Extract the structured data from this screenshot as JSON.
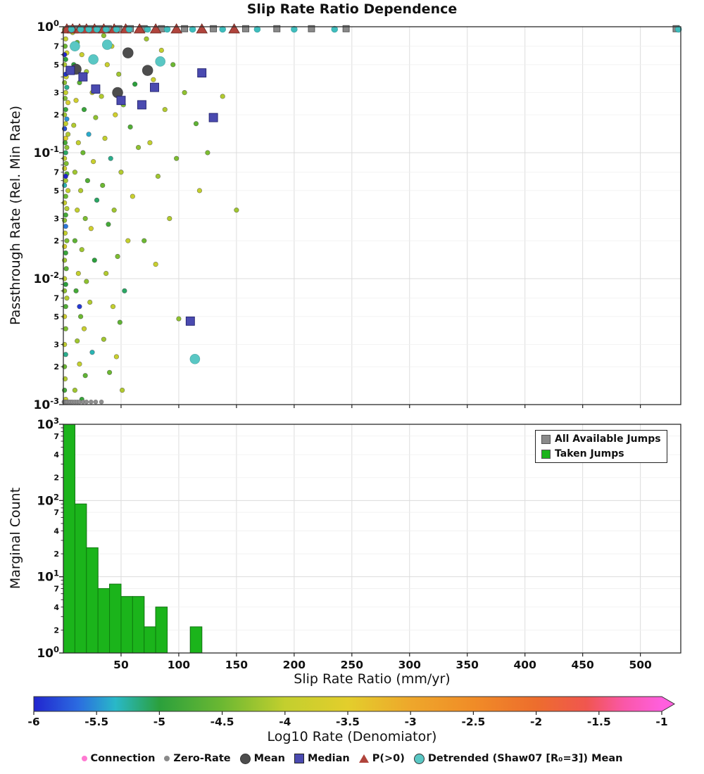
{
  "figure": {
    "title": "Slip Rate Ratio Dependence"
  },
  "x_axis": {
    "label": "Slip Rate Ratio (mm/yr)",
    "ticks": [
      50,
      100,
      150,
      200,
      250,
      300,
      350,
      400,
      450,
      500
    ],
    "xlim": [
      0,
      535
    ]
  },
  "top_panel": {
    "ylabel": "Passthrough Rate (Rel. Min Rate)"
  },
  "bottom_panel": {
    "ylabel": "Marginal Count"
  },
  "colorbar": {
    "label": "Log10 Rate (Denomiator)",
    "range": [
      -6,
      -1
    ],
    "ticks": [
      -6,
      -5.5,
      -5,
      -4.5,
      -4,
      -3.5,
      -3,
      -2.5,
      -2,
      -1.5,
      -1
    ],
    "stops": [
      [
        0,
        "#2125cf"
      ],
      [
        0.07,
        "#2b6be0"
      ],
      [
        0.13,
        "#29b8c8"
      ],
      [
        0.2,
        "#2ba03c"
      ],
      [
        0.3,
        "#6cb832"
      ],
      [
        0.4,
        "#c3cf2e"
      ],
      [
        0.5,
        "#e3ce2c"
      ],
      [
        0.6,
        "#eea72b"
      ],
      [
        0.7,
        "#f08c27"
      ],
      [
        0.8,
        "#ed6d2d"
      ],
      [
        0.88,
        "#f0564f"
      ],
      [
        0.94,
        "#fa57a8"
      ],
      [
        1,
        "#ff5fde"
      ]
    ]
  },
  "hist_legend": {
    "items": [
      {
        "label": "All Available Jumps",
        "color": "#8a8a8a"
      },
      {
        "label": "Taken Jumps",
        "color": "#1bb41b"
      }
    ]
  },
  "figure_legend": {
    "items": [
      {
        "label": "Connection",
        "marker": "dot",
        "color": "#ff7ad2"
      },
      {
        "label": "Zero-Rate",
        "marker": "dot",
        "color": "#8a8a8a"
      },
      {
        "label": "Mean",
        "marker": "circle",
        "color": "#4d4d4d"
      },
      {
        "label": "Median",
        "marker": "square",
        "color": "#4a4ab0"
      },
      {
        "label": "P(>0)",
        "marker": "triangle",
        "color": "#b0443c"
      },
      {
        "label": "Detrended (Shaw07 [R₀=3]) Mean",
        "marker": "circle",
        "color": "#59c7c4"
      }
    ]
  },
  "chart_data": [
    {
      "type": "scatter",
      "panel": "top",
      "title": "Slip Rate Ratio Dependence",
      "xlabel": "Slip Rate Ratio (mm/yr)",
      "ylabel": "Passthrough Rate (Rel. Min Rate)",
      "xlim": [
        0,
        535
      ],
      "ylim": [
        0.001,
        1
      ],
      "yscale": "log",
      "y_major_exponents": [
        0,
        -1,
        -2,
        -3
      ],
      "y_minor_digits": [
        7,
        5,
        3,
        2
      ],
      "series": [
        {
          "name": "jumps-colored-by-log10-rate",
          "marker": "circle",
          "size": 3.3,
          "color_by": "log10_rate",
          "points": [
            [
              1,
              0.95,
              -4.2
            ],
            [
              2,
              0.8,
              -4.0
            ],
            [
              1.5,
              0.7,
              -4.5
            ],
            [
              3,
              0.62,
              -3.8
            ],
            [
              2,
              0.55,
              -5.0
            ],
            [
              1,
              0.5,
              -4.1
            ],
            [
              4,
              0.45,
              -4.6
            ],
            [
              2.5,
              0.4,
              -3.9
            ],
            [
              1,
              0.36,
              -4.3
            ],
            [
              3,
              0.33,
              -5.2
            ],
            [
              2,
              0.3,
              -4.0
            ],
            [
              1.5,
              0.27,
              -4.4
            ],
            [
              4,
              0.25,
              -3.7
            ],
            [
              2,
              0.22,
              -4.9
            ],
            [
              1,
              0.2,
              -4.2
            ],
            [
              3,
              0.185,
              -5.5
            ],
            [
              2,
              0.17,
              -4.0
            ],
            [
              1,
              0.155,
              -4.6
            ],
            [
              4,
              0.14,
              -4.1
            ],
            [
              2,
              0.13,
              -3.6
            ],
            [
              1.5,
              0.12,
              -4.8
            ],
            [
              3,
              0.11,
              -4.3
            ],
            [
              2,
              0.1,
              -5.1
            ],
            [
              1,
              0.09,
              -4.0
            ],
            [
              2.5,
              0.082,
              -4.4
            ],
            [
              1,
              0.075,
              -3.8
            ],
            [
              3,
              0.068,
              -4.7
            ],
            [
              2,
              0.06,
              -4.2
            ],
            [
              1,
              0.055,
              -5.3
            ],
            [
              4,
              0.05,
              -4.0
            ],
            [
              2,
              0.045,
              -4.5
            ],
            [
              1,
              0.04,
              -3.9
            ],
            [
              3,
              0.036,
              -4.1
            ],
            [
              2,
              0.032,
              -4.8
            ],
            [
              1,
              0.029,
              -4.3
            ],
            [
              2,
              0.026,
              -5.6
            ],
            [
              1.5,
              0.023,
              -4.0
            ],
            [
              3,
              0.02,
              -4.4
            ],
            [
              1,
              0.018,
              -3.7
            ],
            [
              2,
              0.016,
              -4.9
            ],
            [
              1,
              0.014,
              -4.2
            ],
            [
              2.5,
              0.012,
              -4.6
            ],
            [
              1,
              0.01,
              -4.0
            ],
            [
              2,
              0.009,
              -5.0
            ],
            [
              1,
              0.008,
              -4.3
            ],
            [
              3,
              0.007,
              -4.1
            ],
            [
              2,
              0.006,
              -4.7
            ],
            [
              1,
              0.005,
              -3.8
            ],
            [
              2,
              0.004,
              -4.4
            ],
            [
              1,
              0.003,
              -4.0
            ],
            [
              2,
              0.0025,
              -5.2
            ],
            [
              1,
              0.002,
              -4.5
            ],
            [
              1.5,
              0.0016,
              -4.1
            ],
            [
              1,
              0.0013,
              -4.8
            ],
            [
              2,
              0.0011,
              -4.0
            ],
            [
              1,
              0.6,
              -6.0
            ],
            [
              2,
              0.42,
              -5.9
            ],
            [
              1,
              0.155,
              -5.8
            ],
            [
              2,
              0.065,
              -6.0
            ],
            [
              14,
              0.006,
              -5.9
            ],
            [
              8,
              0.9,
              -4.1
            ],
            [
              12,
              0.75,
              -4.5
            ],
            [
              16,
              0.6,
              -3.9
            ],
            [
              9,
              0.5,
              -5.0
            ],
            [
              20,
              0.44,
              -4.2
            ],
            [
              14,
              0.36,
              -4.6
            ],
            [
              25,
              0.3,
              -4.0
            ],
            [
              11,
              0.26,
              -3.8
            ],
            [
              18,
              0.22,
              -4.9
            ],
            [
              28,
              0.19,
              -4.3
            ],
            [
              9,
              0.165,
              -4.1
            ],
            [
              22,
              0.14,
              -5.4
            ],
            [
              13,
              0.12,
              -4.0
            ],
            [
              17,
              0.1,
              -4.5
            ],
            [
              26,
              0.085,
              -3.9
            ],
            [
              10,
              0.07,
              -4.2
            ],
            [
              21,
              0.06,
              -4.7
            ],
            [
              15,
              0.05,
              -4.1
            ],
            [
              29,
              0.042,
              -5.1
            ],
            [
              12,
              0.035,
              -4.0
            ],
            [
              19,
              0.03,
              -4.4
            ],
            [
              24,
              0.025,
              -3.8
            ],
            [
              10,
              0.02,
              -4.6
            ],
            [
              16,
              0.017,
              -4.2
            ],
            [
              27,
              0.014,
              -5.0
            ],
            [
              13,
              0.011,
              -4.0
            ],
            [
              20,
              0.0095,
              -4.3
            ],
            [
              11,
              0.008,
              -4.8
            ],
            [
              23,
              0.0065,
              -4.1
            ],
            [
              15,
              0.005,
              -4.5
            ],
            [
              18,
              0.004,
              -3.9
            ],
            [
              12,
              0.0032,
              -4.2
            ],
            [
              25,
              0.0026,
              -5.3
            ],
            [
              14,
              0.0021,
              -4.0
            ],
            [
              19,
              0.0017,
              -4.6
            ],
            [
              10,
              0.0013,
              -4.2
            ],
            [
              16,
              0.0011,
              -4.9
            ],
            [
              35,
              0.85,
              -4.3
            ],
            [
              42,
              0.7,
              -4.0
            ],
            [
              55,
              0.6,
              -4.6
            ],
            [
              38,
              0.5,
              -3.9
            ],
            [
              48,
              0.42,
              -4.2
            ],
            [
              62,
              0.35,
              -5.0
            ],
            [
              33,
              0.28,
              -4.1
            ],
            [
              52,
              0.24,
              -4.4
            ],
            [
              45,
              0.2,
              -3.8
            ],
            [
              58,
              0.16,
              -4.7
            ],
            [
              36,
              0.13,
              -4.0
            ],
            [
              65,
              0.11,
              -4.3
            ],
            [
              41,
              0.09,
              -5.2
            ],
            [
              50,
              0.07,
              -4.1
            ],
            [
              34,
              0.055,
              -4.5
            ],
            [
              60,
              0.045,
              -3.9
            ],
            [
              44,
              0.035,
              -4.2
            ],
            [
              39,
              0.027,
              -4.8
            ],
            [
              56,
              0.02,
              -4.0
            ],
            [
              47,
              0.015,
              -4.4
            ],
            [
              37,
              0.011,
              -4.1
            ],
            [
              53,
              0.008,
              -5.1
            ],
            [
              43,
              0.006,
              -4.0
            ],
            [
              49,
              0.0045,
              -4.6
            ],
            [
              35,
              0.0033,
              -4.2
            ],
            [
              46,
              0.0024,
              -3.9
            ],
            [
              40,
              0.0018,
              -4.5
            ],
            [
              51,
              0.0013,
              -4.1
            ],
            [
              72,
              0.8,
              -4.2
            ],
            [
              85,
              0.65,
              -4.0
            ],
            [
              95,
              0.5,
              -4.5
            ],
            [
              78,
              0.38,
              -3.9
            ],
            [
              105,
              0.3,
              -4.3
            ],
            [
              88,
              0.22,
              -4.1
            ],
            [
              115,
              0.17,
              -4.6
            ],
            [
              75,
              0.12,
              -4.0
            ],
            [
              98,
              0.09,
              -4.4
            ],
            [
              82,
              0.065,
              -4.2
            ],
            [
              92,
              0.03,
              -4.1
            ],
            [
              70,
              0.02,
              -4.5
            ],
            [
              80,
              0.013,
              -3.9
            ],
            [
              100,
              0.0048,
              -4.3
            ],
            [
              138,
              0.28,
              -4.1
            ],
            [
              125,
              0.1,
              -4.4
            ],
            [
              118,
              0.05,
              -4.0
            ],
            [
              150,
              0.035,
              -4.2
            ]
          ]
        },
        {
          "name": "zero-rate",
          "marker": "circle",
          "size": 3,
          "color": "#8f8f8f",
          "edge": "#555555",
          "y": 0.00105,
          "x": [
            0.5,
            1.5,
            2.5,
            3.5,
            5,
            6.5,
            8,
            10,
            12,
            14,
            17,
            20,
            24,
            28,
            33
          ]
        },
        {
          "name": "all-available-jumps-top",
          "marker": "square",
          "size": 9,
          "color": "#8a8a8a",
          "edge": "#4f4f4f",
          "y": 0.965,
          "x": [
            5,
            11,
            17,
            24,
            31,
            39,
            48,
            58,
            70,
            85,
            105,
            130,
            158,
            185,
            215,
            245,
            531
          ]
        },
        {
          "name": "p-greater-0",
          "marker": "triangle",
          "size": 13,
          "color": "#b0443c",
          "edge": "#6f2a24",
          "y": 0.95,
          "x": [
            3,
            8,
            14,
            20,
            27,
            35,
            44,
            54,
            66,
            80,
            98,
            120,
            148
          ]
        },
        {
          "name": "detrended-top-row",
          "marker": "circle",
          "size": 4.5,
          "color": "#3fbdbd",
          "edge": "#1f8080",
          "y": 0.955,
          "x": [
            7,
            15,
            22,
            29,
            37,
            46,
            57,
            73,
            90,
            112,
            138,
            168,
            200,
            235,
            533
          ]
        },
        {
          "name": "mean",
          "marker": "circle",
          "size": 7.5,
          "color": "#4d4d4d",
          "edge": "#1a1a1a",
          "points": [
            [
              11,
              0.46
            ],
            [
              47,
              0.3
            ],
            [
              56,
              0.62
            ],
            [
              73,
              0.45
            ]
          ]
        },
        {
          "name": "median",
          "marker": "square",
          "size": 12,
          "color": "#4a4ab0",
          "edge": "#22226e",
          "points": [
            [
              6,
              0.45
            ],
            [
              17,
              0.4
            ],
            [
              28,
              0.32
            ],
            [
              50,
              0.26
            ],
            [
              68,
              0.24
            ],
            [
              79,
              0.33
            ],
            [
              120,
              0.43
            ],
            [
              130,
              0.19
            ],
            [
              110,
              0.0046
            ]
          ]
        },
        {
          "name": "detrended-shaw07-mean",
          "marker": "circle",
          "size": 7,
          "color": "#59c7c4",
          "edge": "#23807d",
          "points": [
            [
              10,
              0.7
            ],
            [
              26,
              0.55
            ],
            [
              38,
              0.72
            ],
            [
              84,
              0.53
            ],
            [
              114,
              0.0023
            ]
          ]
        }
      ]
    },
    {
      "type": "bar",
      "panel": "bottom",
      "ylabel": "Marginal Count",
      "yscale": "log",
      "ylim": [
        1,
        1000
      ],
      "y_major_exponents": [
        3,
        2,
        1,
        0
      ],
      "y_minor_digits": [
        7,
        4,
        2
      ],
      "bin_start": 0,
      "bin_width": 10,
      "series": [
        {
          "name": "All Available Jumps",
          "color": "#8a8a8a",
          "edge": "#555555",
          "values": [
            1000,
            90,
            24,
            7,
            8,
            5.5,
            5.5,
            2.2,
            4,
            0,
            0,
            2.2
          ]
        },
        {
          "name": "Taken Jumps",
          "color": "#1bb41b",
          "edge": "#0e7d0e",
          "values": [
            1000,
            90,
            24,
            7,
            8,
            5.5,
            5.5,
            2.2,
            4,
            0,
            0,
            2.2
          ]
        }
      ]
    }
  ]
}
